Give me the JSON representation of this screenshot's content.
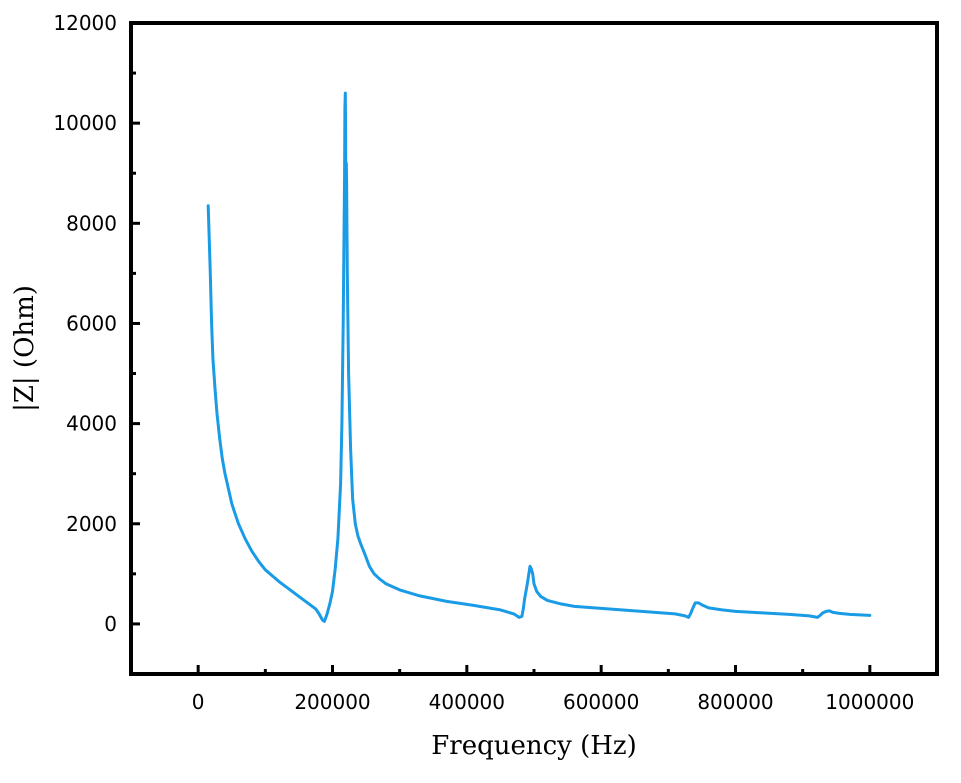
{
  "chart_data": {
    "type": "line",
    "title": "",
    "xlabel": "Frequency (Hz)",
    "ylabel": "|Z| (Ohm)",
    "xlim": [
      -100000,
      1100000
    ],
    "ylim": [
      -1000,
      12000
    ],
    "x_ticks": [
      0,
      200000,
      400000,
      600000,
      800000,
      1000000
    ],
    "x_tick_labels": [
      "0",
      "200000",
      "400000",
      "600000",
      "800000",
      "1000000"
    ],
    "y_ticks": [
      0,
      2000,
      4000,
      6000,
      8000,
      10000,
      12000
    ],
    "y_tick_labels": [
      "0",
      "2000",
      "4000",
      "6000",
      "8000",
      "10000",
      "12000"
    ],
    "grid": false,
    "colors": {
      "line": "#1a9be6",
      "axes": "#000000"
    },
    "series": [
      {
        "x": [
          15000,
          16000,
          18000,
          20000,
          22000,
          25000,
          28000,
          32000,
          36000,
          40000,
          45000,
          50000,
          55000,
          60000,
          70000,
          80000,
          90000,
          100000,
          120000,
          140000,
          160000,
          175000,
          180000,
          185000,
          188000,
          192000,
          196000,
          200000,
          204000,
          208000,
          212000,
          214000,
          216000,
          217000,
          218000,
          218500,
          219000,
          219500,
          220000,
          220500,
          221000,
          222000,
          224000,
          227000,
          230000,
          234000,
          238000,
          242000,
          248000,
          255000,
          262000,
          270000,
          280000,
          300000,
          330000,
          370000,
          410000,
          450000,
          470000,
          478000,
          482000,
          484000,
          486000,
          490000,
          494000,
          496000,
          498000,
          500000,
          504000,
          510000,
          520000,
          540000,
          560000,
          600000,
          640000,
          680000,
          710000,
          725000,
          730000,
          733000,
          736000,
          740000,
          745000,
          750000,
          760000,
          780000,
          800000,
          840000,
          880000,
          910000,
          918000,
          922000,
          926000,
          930000,
          935000,
          940000,
          945000,
          955000,
          970000,
          985000,
          1000000
        ],
        "y": [
          8350,
          7900,
          7000,
          6000,
          5300,
          4700,
          4200,
          3700,
          3300,
          3000,
          2700,
          2400,
          2200,
          2000,
          1700,
          1450,
          1250,
          1080,
          850,
          650,
          450,
          300,
          200,
          80,
          50,
          200,
          400,
          650,
          1100,
          1700,
          2800,
          4000,
          6000,
          7500,
          9000,
          10300,
          10600,
          9800,
          8500,
          9200,
          8800,
          7000,
          5000,
          3500,
          2500,
          2000,
          1750,
          1600,
          1400,
          1150,
          1000,
          900,
          800,
          680,
          560,
          450,
          370,
          280,
          200,
          130,
          150,
          300,
          500,
          800,
          1150,
          1100,
          1000,
          800,
          650,
          550,
          470,
          400,
          350,
          310,
          270,
          230,
          200,
          160,
          130,
          200,
          300,
          420,
          420,
          380,
          320,
          280,
          250,
          220,
          190,
          160,
          140,
          130,
          170,
          220,
          250,
          260,
          230,
          210,
          190,
          180,
          170
        ]
      }
    ]
  }
}
